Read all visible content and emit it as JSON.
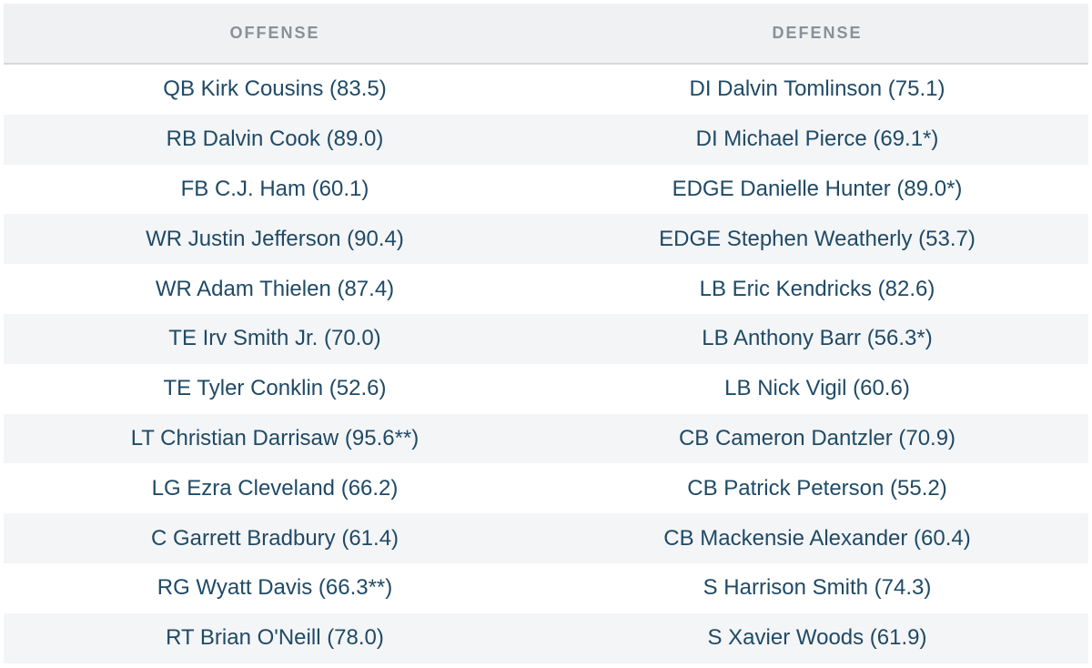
{
  "table": {
    "header": [
      "OFFENSE",
      "DEFENSE"
    ],
    "rows": [
      [
        "QB Kirk Cousins (83.5)",
        "DI Dalvin Tomlinson (75.1)"
      ],
      [
        "RB Dalvin Cook (89.0)",
        "DI Michael Pierce (69.1*)"
      ],
      [
        "FB C.J. Ham (60.1)",
        "EDGE Danielle Hunter (89.0*)"
      ],
      [
        "WR Justin Jefferson (90.4)",
        "EDGE Stephen Weatherly (53.7)"
      ],
      [
        "WR Adam Thielen (87.4)",
        "LB Eric Kendricks (82.6)"
      ],
      [
        "TE Irv Smith Jr. (70.0)",
        "LB Anthony Barr (56.3*)"
      ],
      [
        "TE Tyler Conklin (52.6)",
        "LB Nick Vigil (60.6)"
      ],
      [
        "LT Christian Darrisaw (95.6**)",
        "CB Cameron Dantzler (70.9)"
      ],
      [
        "LG Ezra Cleveland (66.2)",
        "CB Patrick Peterson (55.2)"
      ],
      [
        "C Garrett Bradbury (61.4)",
        "CB Mackensie Alexander (60.4)"
      ],
      [
        "RG Wyatt Davis (66.3**)",
        "S Harrison Smith (74.3)"
      ],
      [
        "RT Brian O'Neill (78.0)",
        "S Xavier Woods (61.9)"
      ]
    ]
  }
}
